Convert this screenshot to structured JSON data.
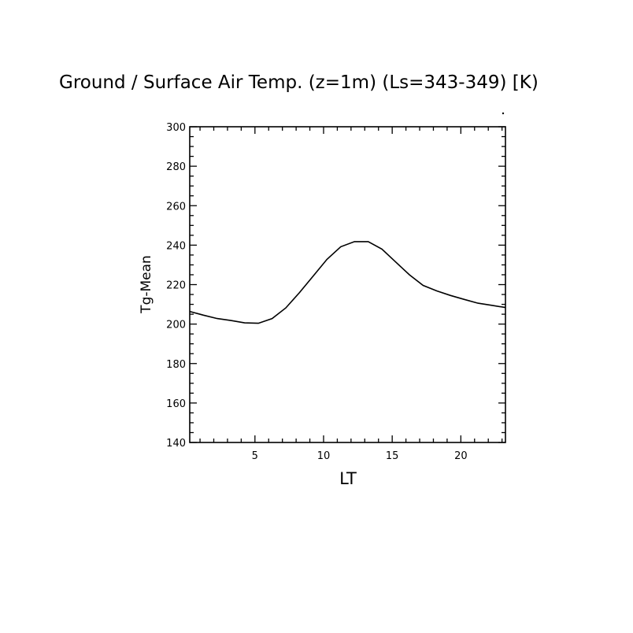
{
  "chart_data": {
    "type": "line",
    "title": "Ground / Surface Air Temp. (z=1m) (Ls=343-349) [K)",
    "xlabel": "LT",
    "ylabel": "Tg-Mean",
    "xlim": [
      0.25,
      23.25
    ],
    "ylim": [
      140,
      300
    ],
    "x_ticks": [
      5,
      10,
      15,
      20
    ],
    "x_tick_labels": [
      "5",
      "10",
      "15",
      "20"
    ],
    "y_ticks": [
      140,
      160,
      180,
      200,
      220,
      240,
      260,
      280,
      300
    ],
    "y_tick_labels": [
      "140",
      "160",
      "180",
      "200",
      "220",
      "240",
      "260",
      "280",
      "300"
    ],
    "x_minor_step": 1,
    "y_minor_step": 5,
    "grid": false,
    "line_color": "#000000",
    "series": [
      {
        "x": [
          0.25,
          1.25,
          2.25,
          3.25,
          4.25,
          5.25,
          6.25,
          7.25,
          8.25,
          9.25,
          10.25,
          11.25,
          12.25,
          13.25,
          14.25,
          15.25,
          16.25,
          17.25,
          18.25,
          19.25,
          20.25,
          21.25,
          22.25,
          23.25
        ],
        "values": [
          206.4,
          204.5,
          202.8,
          201.8,
          200.6,
          200.4,
          202.8,
          208.2,
          216.0,
          224.4,
          232.8,
          239.2,
          241.8,
          241.8,
          238.0,
          231.5,
          225.0,
          219.6,
          216.8,
          214.5,
          212.5,
          210.6,
          209.5,
          208.4
        ]
      }
    ]
  }
}
